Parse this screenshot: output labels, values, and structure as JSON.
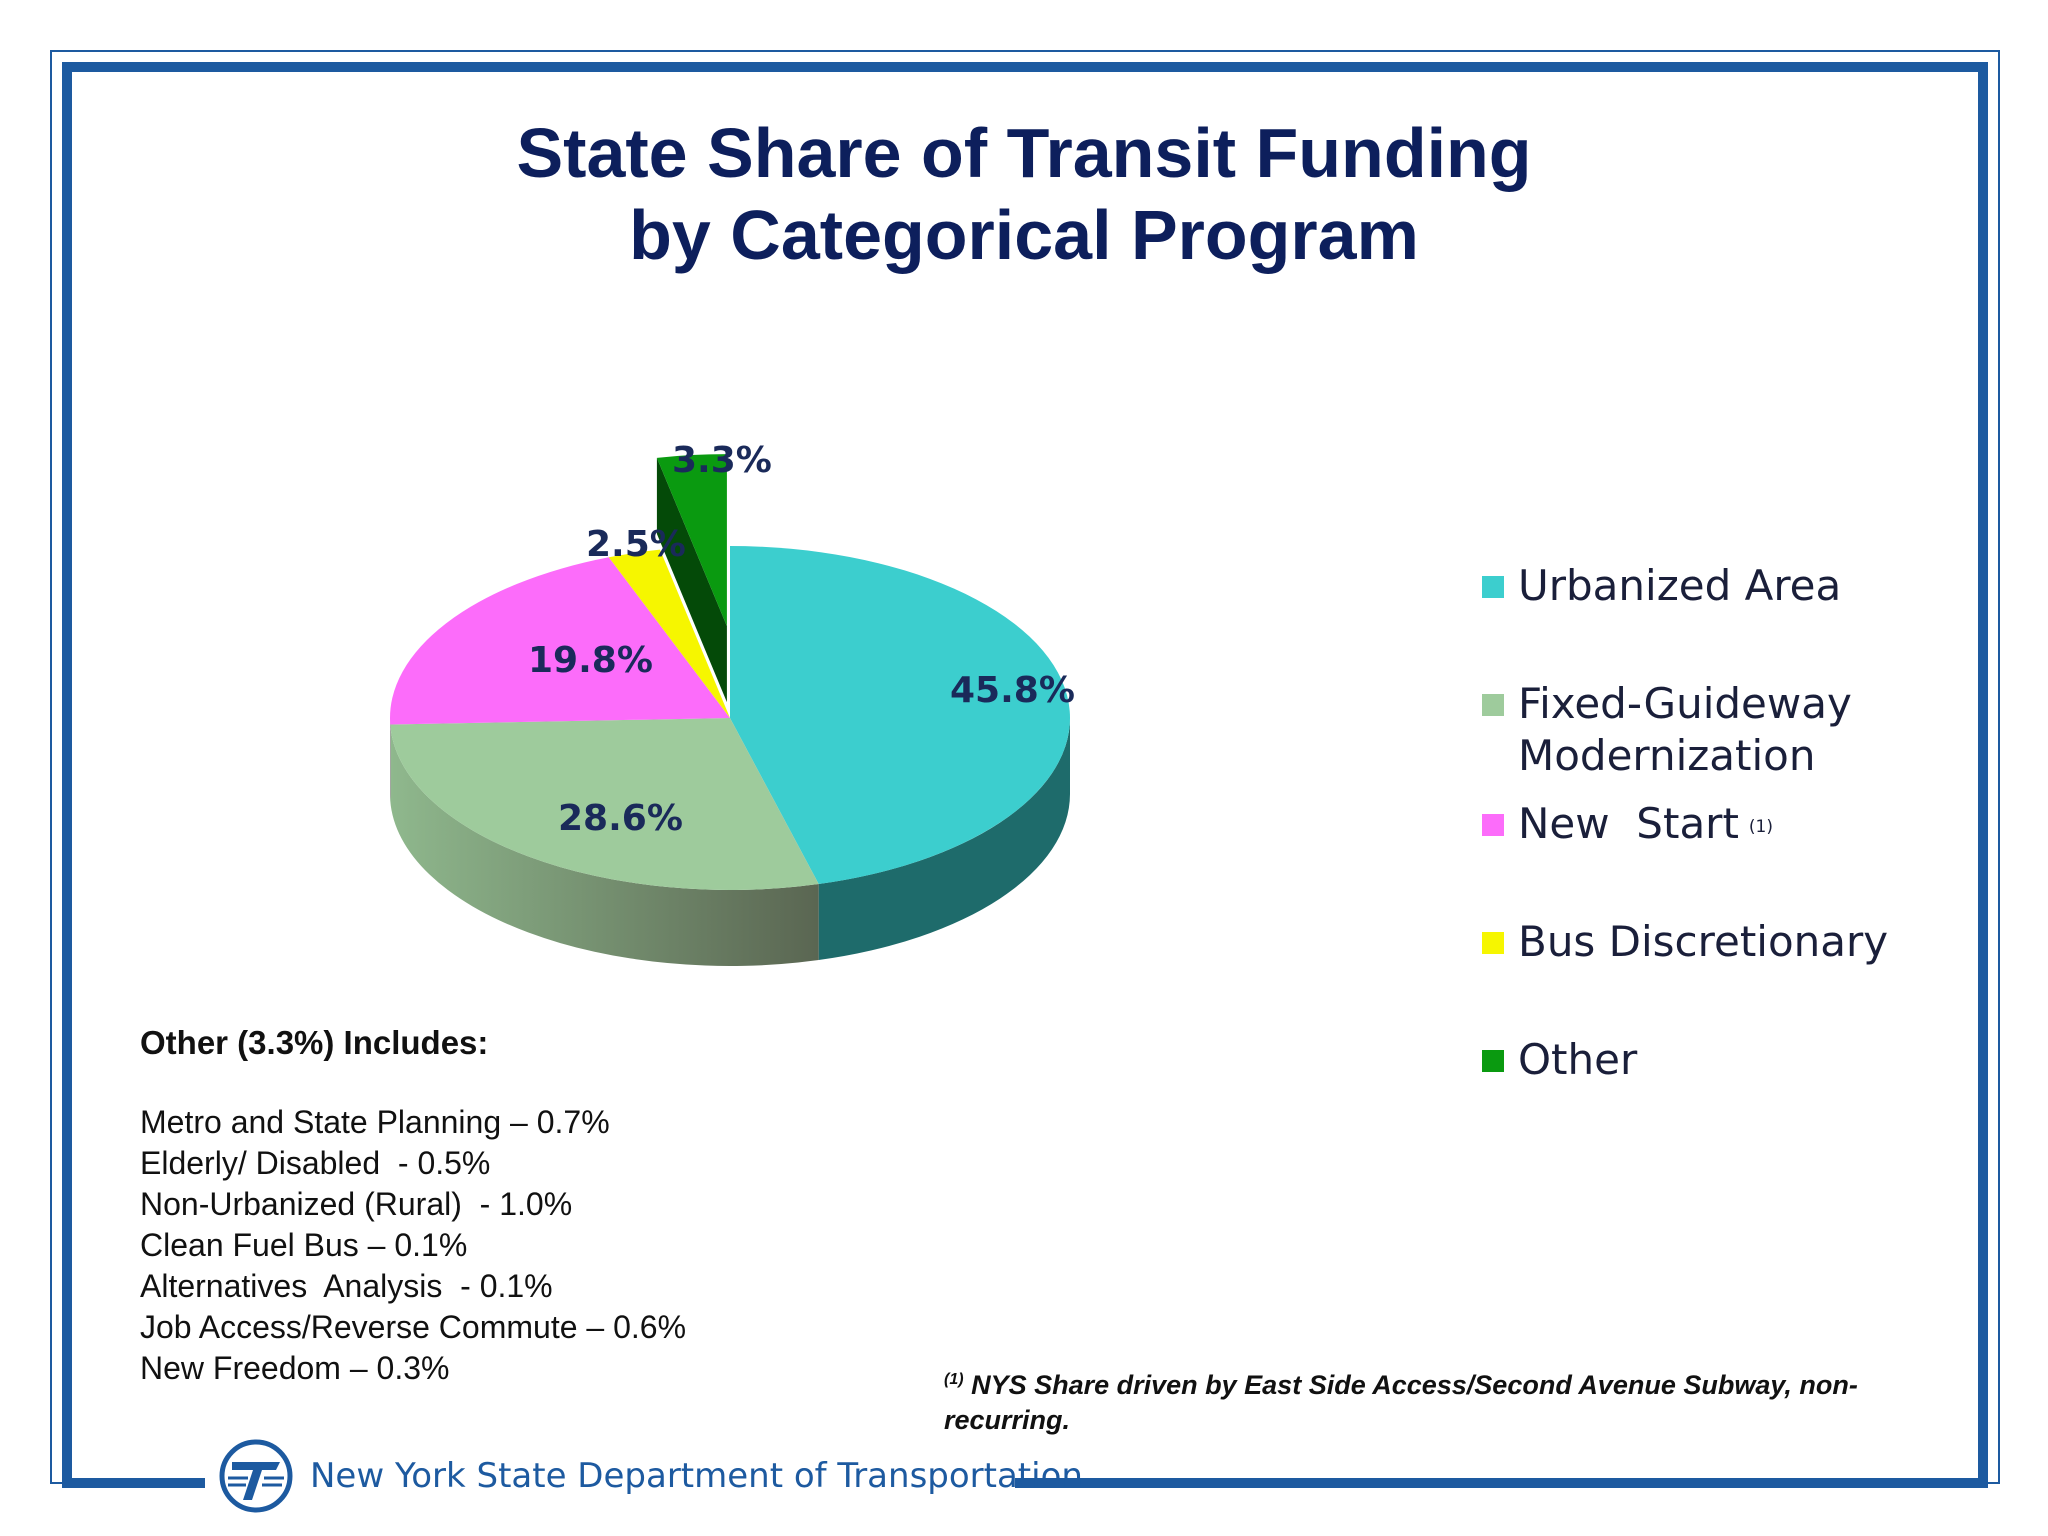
{
  "title": {
    "line1": "State Share of Transit Funding",
    "line2": "by Categorical Program"
  },
  "colors": {
    "frame": "#1d5aa0",
    "title": "#0d1f5c",
    "urbanized": "#3ccece",
    "fixed": "#9ecb9c",
    "newstart": "#fc6cfa",
    "bus": "#f6f600",
    "other": "#0a9a10"
  },
  "chart_data": {
    "type": "pie",
    "title": "State Share of Transit Funding by Categorical Program",
    "slices": [
      {
        "name": "Urbanized Area",
        "value": 45.8,
        "label": "45.8%",
        "color": "#3ccece",
        "side": "#1e6b6b"
      },
      {
        "name": "Fixed-Guideway Modernization",
        "value": 28.6,
        "label": "28.6%",
        "color": "#9ecb9c",
        "side": "#6e8f6c"
      },
      {
        "name": "New Start",
        "value": 19.8,
        "label": "19.8%",
        "color": "#fc6cfa",
        "side": "#a848a6"
      },
      {
        "name": "Bus Discretionary",
        "value": 2.5,
        "label": "2.5%",
        "color": "#f6f600",
        "side": "#a3a300"
      },
      {
        "name": "Other",
        "value": 3.3,
        "label": "3.3%",
        "color": "#0a9a10",
        "side": "#044a08",
        "exploded": true
      }
    ],
    "legend_position": "right"
  },
  "legend": {
    "items": [
      {
        "label": "Urbanized Area",
        "note": "",
        "color": "#3ccece"
      },
      {
        "label": "Fixed-Guideway\nModernization",
        "note": "",
        "color": "#9ecb9c"
      },
      {
        "label": "New  Start",
        "note": "(1)",
        "color": "#fc6cfa"
      },
      {
        "label": "Bus Discretionary",
        "note": "",
        "color": "#f6f600"
      },
      {
        "label": "Other",
        "note": "",
        "color": "#0a9a10"
      }
    ]
  },
  "other_includes": {
    "heading": "Other (3.3%) Includes:",
    "lines": [
      "Metro and State Planning – 0.7%",
      "Elderly/ Disabled  - 0.5%",
      "Non-Urbanized (Rural)  - 1.0%",
      "Clean Fuel Bus – 0.1%",
      "Alternatives  Analysis  - 0.1%",
      "Job Access/Reverse Commute – 0.6%",
      "New Freedom – 0.3%"
    ]
  },
  "footnote": {
    "marker": "(1)",
    "text": " NYS Share driven by East Side Access/Second Avenue Subway, non-recurring."
  },
  "footer": {
    "org": "New York State Department of Transportation",
    "logo_icon": "nysdot-logo-icon"
  }
}
